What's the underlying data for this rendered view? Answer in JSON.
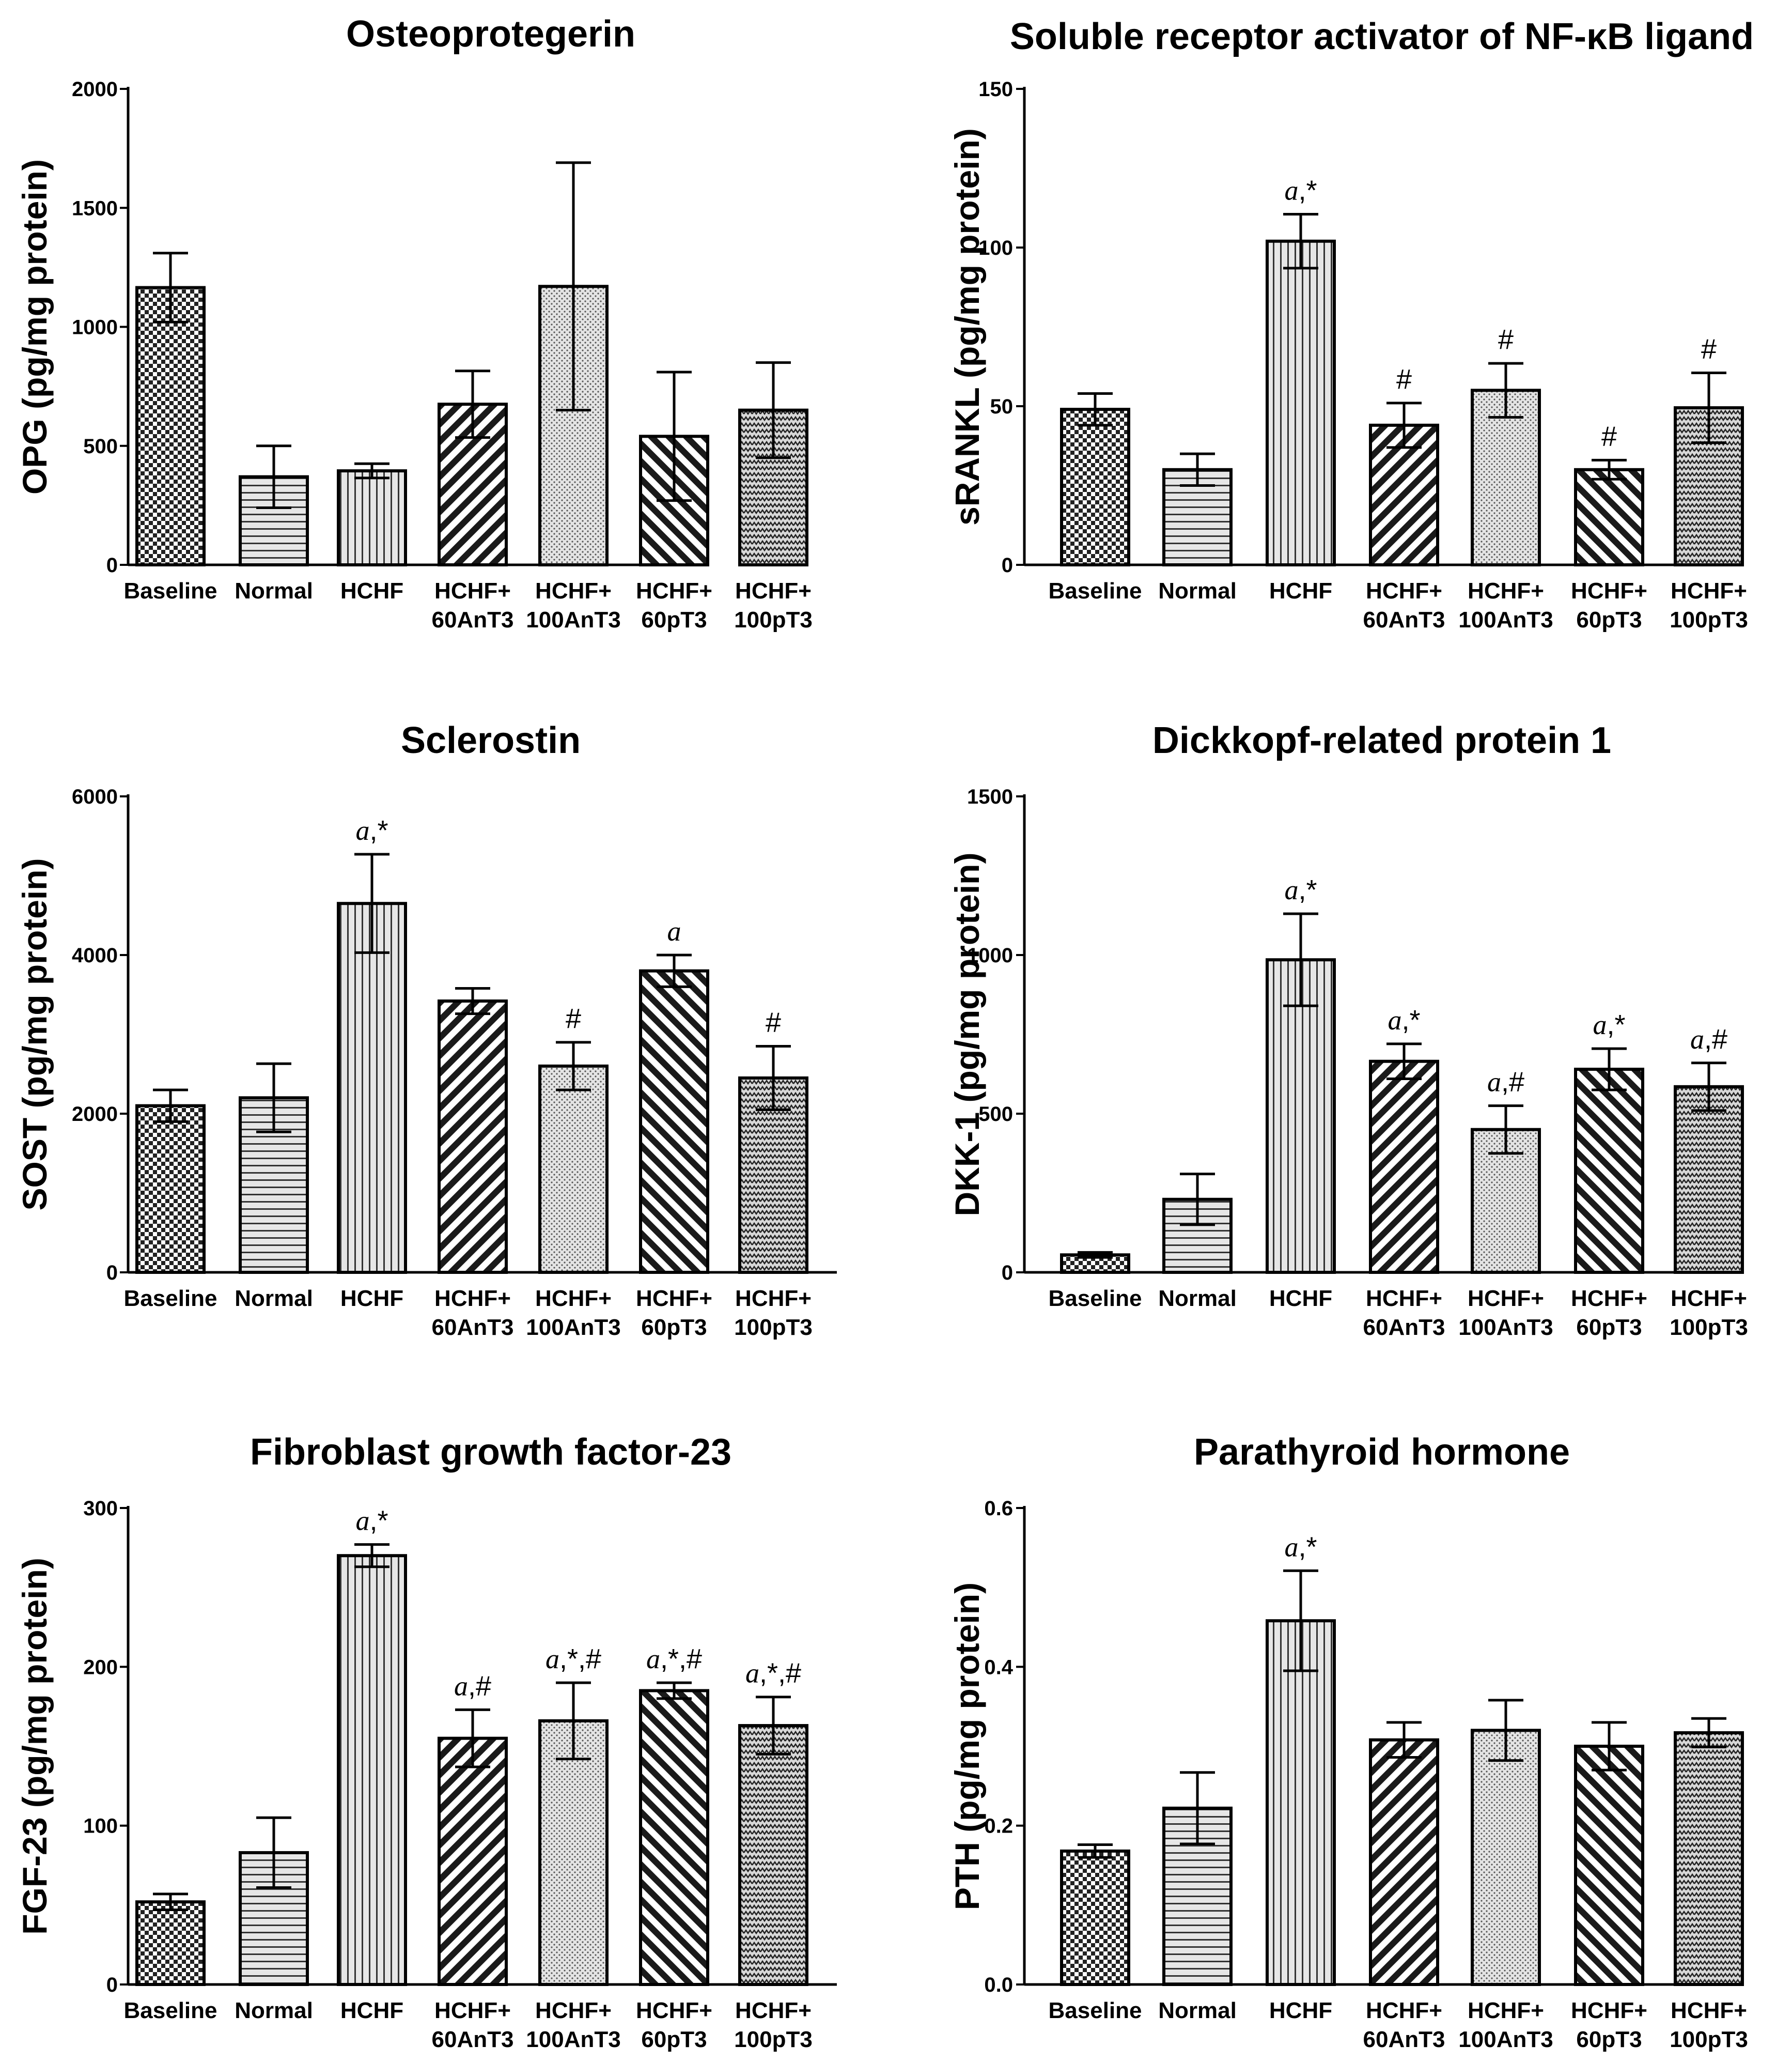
{
  "chart_data": [
    {
      "type": "bar",
      "title": "Osteoprotegerin",
      "ylabel": "OPG (pg/mg protein)",
      "ylim": [
        0,
        2000
      ],
      "yticks": [
        0,
        500,
        1000,
        1500,
        2000
      ],
      "categories": [
        "Baseline",
        "Normal",
        "HCHF",
        "HCHF+\n60AnT3",
        "HCHF+\n100AnT3",
        "HCHF+\n60pT3",
        "HCHF+\n100pT3"
      ],
      "values": [
        1165,
        370,
        395,
        675,
        1170,
        540,
        650
      ],
      "errors": [
        145,
        130,
        30,
        140,
        520,
        270,
        200
      ],
      "annotations": [
        "",
        "",
        "",
        "",
        "",
        "",
        ""
      ],
      "patterns": [
        "checker",
        "hlines",
        "vlines",
        "diagback",
        "dots",
        "diagfwd",
        "zigzag"
      ]
    },
    {
      "type": "bar",
      "title": "Soluble receptor activator of NF-κB ligand",
      "ylabel": "sRANKL (pg/mg protein)",
      "ylim": [
        0,
        150
      ],
      "yticks": [
        0,
        50,
        100,
        150
      ],
      "categories": [
        "Baseline",
        "Normal",
        "HCHF",
        "HCHF+\n60AnT3",
        "HCHF+\n100AnT3",
        "HCHF+\n60pT3",
        "HCHF+\n100pT3"
      ],
      "values": [
        49,
        30,
        102,
        44,
        55,
        30,
        49.5
      ],
      "errors": [
        5,
        5,
        8.5,
        7,
        8.5,
        3,
        11
      ],
      "annotations": [
        "",
        "",
        "a,*",
        "#",
        "#",
        "#",
        "#"
      ],
      "patterns": [
        "checker",
        "hlines",
        "vlines",
        "diagback",
        "dots",
        "diagfwd",
        "zigzag"
      ]
    },
    {
      "type": "bar",
      "title": "Sclerostin",
      "ylabel": "SOST (pg/mg protein)",
      "ylim": [
        0,
        6000
      ],
      "yticks": [
        0,
        2000,
        4000,
        6000
      ],
      "categories": [
        "Baseline",
        "Normal",
        "HCHF",
        "HCHF+\n60AnT3",
        "HCHF+\n100AnT3",
        "HCHF+\n60pT3",
        "HCHF+\n100pT3"
      ],
      "values": [
        2100,
        2200,
        4650,
        3420,
        2600,
        3800,
        2450
      ],
      "errors": [
        200,
        430,
        620,
        160,
        300,
        200,
        400
      ],
      "annotations": [
        "",
        "",
        "a,*",
        "",
        "#",
        "a",
        "#"
      ],
      "patterns": [
        "checker",
        "hlines",
        "vlines",
        "diagback",
        "dots",
        "diagfwd",
        "zigzag"
      ]
    },
    {
      "type": "bar",
      "title": "Dickkopf-related protein 1",
      "ylabel": "DKK-1 (pg/mg protein)",
      "ylim": [
        0,
        1500
      ],
      "yticks": [
        0,
        500,
        1000,
        1500
      ],
      "categories": [
        "Baseline",
        "Normal",
        "HCHF",
        "HCHF+\n60AnT3",
        "HCHF+\n100AnT3",
        "HCHF+\n60pT3",
        "HCHF+\n100pT3"
      ],
      "values": [
        55,
        230,
        985,
        665,
        450,
        640,
        585
      ],
      "errors": [
        8,
        80,
        145,
        55,
        75,
        65,
        75
      ],
      "annotations": [
        "",
        "",
        "a,*",
        "a,*",
        "a,#",
        "a,*",
        "a,#"
      ],
      "patterns": [
        "checker",
        "hlines",
        "vlines",
        "diagback",
        "dots",
        "diagfwd",
        "zigzag"
      ]
    },
    {
      "type": "bar",
      "title": "Fibroblast growth factor-23",
      "ylabel": "FGF-23 (pg/mg protein)",
      "ylim": [
        0,
        300
      ],
      "yticks": [
        0,
        100,
        200,
        300
      ],
      "categories": [
        "Baseline",
        "Normal",
        "HCHF",
        "HCHF+\n60AnT3",
        "HCHF+\n100AnT3",
        "HCHF+\n60pT3",
        "HCHF+\n100pT3"
      ],
      "values": [
        52,
        83,
        270,
        155,
        166,
        185,
        163
      ],
      "errors": [
        5,
        22,
        7,
        18,
        24,
        5,
        18
      ],
      "annotations": [
        "",
        "",
        "a,*",
        "a,#",
        "a,*,#",
        "a,*,#",
        "a,*,#"
      ],
      "patterns": [
        "checker",
        "hlines",
        "vlines",
        "diagback",
        "dots",
        "diagfwd",
        "zigzag"
      ]
    },
    {
      "type": "bar",
      "title": "Parathyroid hormone",
      "ylabel": "PTH (pg/mg protein)",
      "ylim": [
        0,
        0.6
      ],
      "yticks": [
        0.0,
        0.2,
        0.4,
        0.6
      ],
      "categories": [
        "Baseline",
        "Normal",
        "HCHF",
        "HCHF+\n60AnT3",
        "HCHF+\n100AnT3",
        "HCHF+\n60pT3",
        "HCHF+\n100pT3"
      ],
      "values": [
        0.168,
        0.222,
        0.458,
        0.308,
        0.32,
        0.3,
        0.317
      ],
      "errors": [
        0.008,
        0.045,
        0.063,
        0.022,
        0.038,
        0.03,
        0.018
      ],
      "annotations": [
        "",
        "",
        "a,*",
        "",
        "",
        "",
        ""
      ],
      "patterns": [
        "checker",
        "hlines",
        "vlines",
        "diagback",
        "dots",
        "diagfwd",
        "zigzag"
      ]
    }
  ]
}
